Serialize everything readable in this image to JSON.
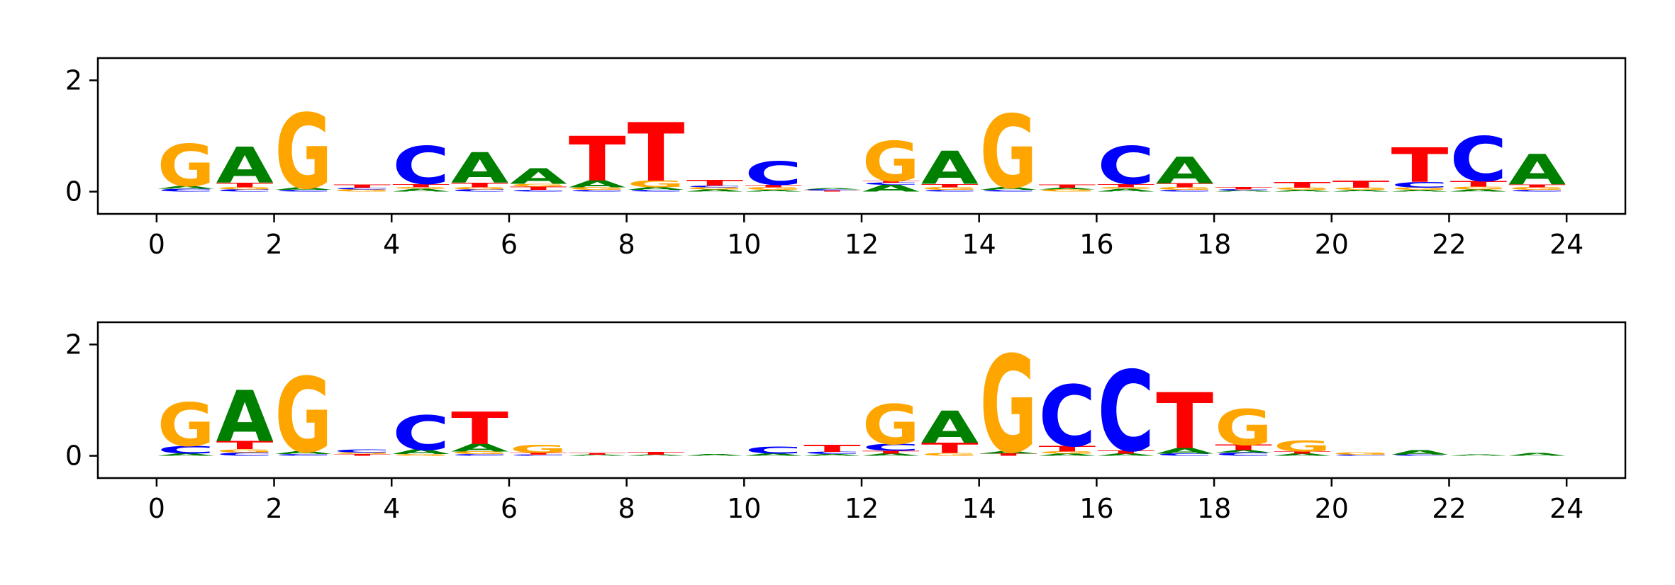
{
  "colors": {
    "A": "#008000",
    "C": "#0000ff",
    "G": "#ffa500",
    "T": "#ff0000",
    "axis": "#000000"
  },
  "chart_data": [
    {
      "type": "sequence-logo",
      "name": "top-logo",
      "xlim": [
        -1,
        25
      ],
      "ylim": [
        -0.4,
        2.4
      ],
      "xticks": [
        0,
        2,
        4,
        6,
        8,
        10,
        12,
        14,
        16,
        18,
        20,
        22,
        24
      ],
      "yticks": [
        0,
        2
      ],
      "positions": [
        {
          "x": 0.5,
          "stack": [
            [
              "C",
              0.05
            ],
            [
              "A",
              0.05
            ],
            [
              "G",
              0.75
            ]
          ]
        },
        {
          "x": 1.5,
          "stack": [
            [
              "C",
              0.04
            ],
            [
              "G",
              0.04
            ],
            [
              "T",
              0.08
            ],
            [
              "A",
              0.65
            ]
          ]
        },
        {
          "x": 2.5,
          "stack": [
            [
              "C",
              0.03
            ],
            [
              "A",
              0.04
            ],
            [
              "G",
              1.35
            ]
          ]
        },
        {
          "x": 3.5,
          "stack": [
            [
              "G",
              0.04
            ],
            [
              "C",
              0.03
            ],
            [
              "T",
              0.06
            ]
          ]
        },
        {
          "x": 4.5,
          "stack": [
            [
              "A",
              0.05
            ],
            [
              "G",
              0.03
            ],
            [
              "T",
              0.06
            ],
            [
              "C",
              0.68
            ]
          ]
        },
        {
          "x": 5.5,
          "stack": [
            [
              "C",
              0.04
            ],
            [
              "G",
              0.04
            ],
            [
              "T",
              0.08
            ],
            [
              "A",
              0.55
            ]
          ]
        },
        {
          "x": 6.5,
          "stack": [
            [
              "C",
              0.03
            ],
            [
              "T",
              0.06
            ],
            [
              "G",
              0.05
            ],
            [
              "A",
              0.28
            ]
          ]
        },
        {
          "x": 7.5,
          "stack": [
            [
              "C",
              0.03
            ],
            [
              "G",
              0.05
            ],
            [
              "A",
              0.12
            ],
            [
              "T",
              0.8
            ]
          ]
        },
        {
          "x": 8.5,
          "stack": [
            [
              "C",
              0.03
            ],
            [
              "A",
              0.05
            ],
            [
              "G",
              0.12
            ],
            [
              "T",
              1.05
            ]
          ]
        },
        {
          "x": 9.5,
          "stack": [
            [
              "A",
              0.04
            ],
            [
              "G",
              0.04
            ],
            [
              "C",
              0.03
            ],
            [
              "T",
              0.1
            ]
          ]
        },
        {
          "x": 10.5,
          "stack": [
            [
              "A",
              0.03
            ],
            [
              "G",
              0.05
            ],
            [
              "T",
              0.04
            ],
            [
              "C",
              0.42
            ]
          ]
        },
        {
          "x": 11.5,
          "stack": [
            [
              "T",
              0.02
            ],
            [
              "C",
              0.02
            ],
            [
              "A",
              0.02
            ]
          ]
        },
        {
          "x": 12.5,
          "stack": [
            [
              "A",
              0.12
            ],
            [
              "C",
              0.04
            ],
            [
              "T",
              0.03
            ],
            [
              "G",
              0.72
            ]
          ]
        },
        {
          "x": 13.5,
          "stack": [
            [
              "C",
              0.03
            ],
            [
              "G",
              0.05
            ],
            [
              "T",
              0.06
            ],
            [
              "A",
              0.6
            ]
          ]
        },
        {
          "x": 14.5,
          "stack": [
            [
              "C",
              0.03
            ],
            [
              "A",
              0.05
            ],
            [
              "G",
              1.32
            ]
          ]
        },
        {
          "x": 15.5,
          "stack": [
            [
              "G",
              0.04
            ],
            [
              "A",
              0.03
            ],
            [
              "T",
              0.06
            ]
          ]
        },
        {
          "x": 16.5,
          "stack": [
            [
              "A",
              0.05
            ],
            [
              "G",
              0.03
            ],
            [
              "T",
              0.06
            ],
            [
              "C",
              0.68
            ]
          ]
        },
        {
          "x": 17.5,
          "stack": [
            [
              "C",
              0.03
            ],
            [
              "G",
              0.05
            ],
            [
              "T",
              0.07
            ],
            [
              "A",
              0.48
            ]
          ]
        },
        {
          "x": 18.5,
          "stack": [
            [
              "A",
              0.02
            ],
            [
              "C",
              0.02
            ],
            [
              "T",
              0.04
            ]
          ]
        },
        {
          "x": 19.5,
          "stack": [
            [
              "A",
              0.03
            ],
            [
              "G",
              0.04
            ],
            [
              "T",
              0.1
            ]
          ]
        },
        {
          "x": 20.5,
          "stack": [
            [
              "A",
              0.03
            ],
            [
              "G",
              0.04
            ],
            [
              "T",
              0.12
            ]
          ]
        },
        {
          "x": 21.5,
          "stack": [
            [
              "A",
              0.03
            ],
            [
              "G",
              0.04
            ],
            [
              "C",
              0.1
            ],
            [
              "T",
              0.62
            ]
          ]
        },
        {
          "x": 22.5,
          "stack": [
            [
              "A",
              0.04
            ],
            [
              "G",
              0.05
            ],
            [
              "T",
              0.1
            ],
            [
              "C",
              0.8
            ]
          ]
        },
        {
          "x": 23.5,
          "stack": [
            [
              "C",
              0.03
            ],
            [
              "G",
              0.05
            ],
            [
              "T",
              0.05
            ],
            [
              "A",
              0.55
            ]
          ]
        }
      ]
    },
    {
      "type": "sequence-logo",
      "name": "bottom-logo",
      "xlim": [
        -1,
        25
      ],
      "ylim": [
        -0.4,
        2.4
      ],
      "xticks": [
        0,
        2,
        4,
        6,
        8,
        10,
        12,
        14,
        16,
        18,
        20,
        22,
        24
      ],
      "yticks": [
        0,
        2
      ],
      "positions": [
        {
          "x": 0.5,
          "stack": [
            [
              "A",
              0.04
            ],
            [
              "C",
              0.14
            ],
            [
              "G",
              0.78
            ]
          ]
        },
        {
          "x": 1.5,
          "stack": [
            [
              "C",
              0.06
            ],
            [
              "G",
              0.06
            ],
            [
              "T",
              0.15
            ],
            [
              "A",
              0.92
            ]
          ]
        },
        {
          "x": 2.5,
          "stack": [
            [
              "C",
              0.03
            ],
            [
              "A",
              0.05
            ],
            [
              "G",
              1.35
            ]
          ]
        },
        {
          "x": 3.5,
          "stack": [
            [
              "T",
              0.03
            ],
            [
              "G",
              0.03
            ],
            [
              "C",
              0.06
            ]
          ]
        },
        {
          "x": 4.5,
          "stack": [
            [
              "G",
              0.03
            ],
            [
              "A",
              0.08
            ],
            [
              "C",
              0.62
            ]
          ]
        },
        {
          "x": 5.5,
          "stack": [
            [
              "C",
              0.03
            ],
            [
              "G",
              0.05
            ],
            [
              "A",
              0.14
            ],
            [
              "T",
              0.58
            ]
          ]
        },
        {
          "x": 6.5,
          "stack": [
            [
              "C",
              0.02
            ],
            [
              "T",
              0.03
            ],
            [
              "G",
              0.15
            ]
          ]
        },
        {
          "x": 7.5,
          "stack": [
            [
              "A",
              0.02
            ],
            [
              "T",
              0.03
            ]
          ]
        },
        {
          "x": 8.5,
          "stack": [
            [
              "A",
              0.02
            ],
            [
              "T",
              0.05
            ]
          ]
        },
        {
          "x": 9.5,
          "stack": [
            [
              "A",
              0.03
            ]
          ]
        },
        {
          "x": 10.5,
          "stack": [
            [
              "A",
              0.04
            ],
            [
              "C",
              0.12
            ]
          ]
        },
        {
          "x": 11.5,
          "stack": [
            [
              "A",
              0.03
            ],
            [
              "C",
              0.04
            ],
            [
              "T",
              0.12
            ]
          ]
        },
        {
          "x": 12.5,
          "stack": [
            [
              "A",
              0.04
            ],
            [
              "T",
              0.05
            ],
            [
              "C",
              0.12
            ],
            [
              "G",
              0.72
            ]
          ]
        },
        {
          "x": 13.5,
          "stack": [
            [
              "G",
              0.05
            ],
            [
              "T",
              0.18
            ],
            [
              "A",
              0.58
            ]
          ]
        },
        {
          "x": 14.5,
          "stack": [
            [
              "T",
              0.04
            ],
            [
              "A",
              0.04
            ],
            [
              "G",
              1.75
            ]
          ]
        },
        {
          "x": 15.5,
          "stack": [
            [
              "A",
              0.04
            ],
            [
              "G",
              0.04
            ],
            [
              "T",
              0.1
            ],
            [
              "C",
              1.1
            ]
          ]
        },
        {
          "x": 16.5,
          "stack": [
            [
              "A",
              0.04
            ],
            [
              "T",
              0.06
            ],
            [
              "C",
              1.45
            ]
          ]
        },
        {
          "x": 17.5,
          "stack": [
            [
              "C",
              0.04
            ],
            [
              "A",
              0.1
            ],
            [
              "T",
              1.0
            ]
          ]
        },
        {
          "x": 18.5,
          "stack": [
            [
              "C",
              0.06
            ],
            [
              "A",
              0.04
            ],
            [
              "T",
              0.1
            ],
            [
              "G",
              0.65
            ]
          ]
        },
        {
          "x": 19.5,
          "stack": [
            [
              "A",
              0.04
            ],
            [
              "T",
              0.04
            ],
            [
              "G",
              0.2
            ]
          ]
        },
        {
          "x": 20.5,
          "stack": [
            [
              "C",
              0.02
            ],
            [
              "G",
              0.04
            ]
          ]
        },
        {
          "x": 21.5,
          "stack": [
            [
              "C",
              0.02
            ],
            [
              "A",
              0.08
            ]
          ]
        },
        {
          "x": 22.5,
          "stack": [
            [
              "A",
              0.02
            ]
          ]
        },
        {
          "x": 23.5,
          "stack": [
            [
              "A",
              0.05
            ]
          ]
        }
      ]
    }
  ]
}
